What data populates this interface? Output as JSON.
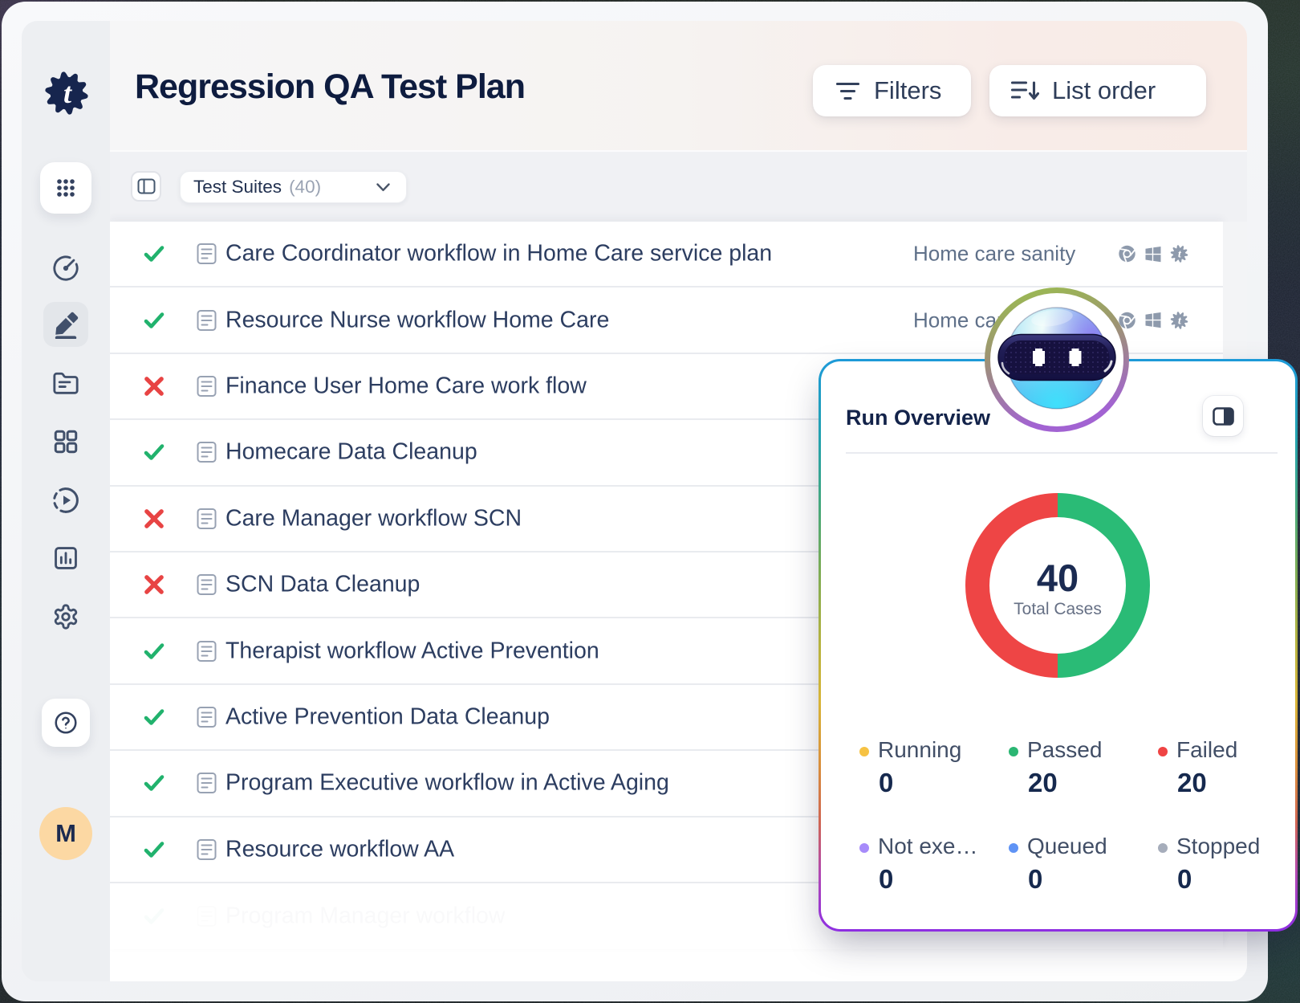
{
  "page_title": "Regression QA Test Plan",
  "header": {
    "filters_label": "Filters",
    "list_order_label": "List order"
  },
  "toolbar": {
    "suites_label": "Test Suites",
    "suites_count": "(40)"
  },
  "sidebar": {
    "logo": "testsigma-cog-logo",
    "items": [
      "apps-grid",
      "dashboard-gauge",
      "edit-pencil",
      "folder",
      "modules-grid",
      "run-play",
      "reports-chart",
      "settings-gear"
    ],
    "active_item": "edit-pencil",
    "help_label": "?",
    "avatar_initial": "M"
  },
  "table": {
    "rows": [
      {
        "status": "pass",
        "name": "Care Coordinator workflow in Home Care service plan",
        "suite": "Home care sanity",
        "env_icons": [
          "chrome",
          "windows",
          "testsigma-gear"
        ]
      },
      {
        "status": "pass",
        "name": "Resource Nurse workflow Home Care",
        "suite": "Home care sanity",
        "env_icons": [
          "chrome",
          "windows",
          "testsigma-gear"
        ]
      },
      {
        "status": "fail",
        "name": "Finance User Home Care work flow",
        "suite": "",
        "env_icons": []
      },
      {
        "status": "pass",
        "name": "Homecare Data Cleanup",
        "suite": "",
        "env_icons": []
      },
      {
        "status": "fail",
        "name": "Care Manager workflow SCN",
        "suite": "",
        "env_icons": []
      },
      {
        "status": "fail",
        "name": "SCN Data Cleanup",
        "suite": "",
        "env_icons": []
      },
      {
        "status": "pass",
        "name": "Therapist workflow Active Prevention",
        "suite": "",
        "env_icons": []
      },
      {
        "status": "pass",
        "name": "Active Prevention Data Cleanup",
        "suite": "",
        "env_icons": []
      },
      {
        "status": "pass",
        "name": "Program Executive workflow in Active Aging",
        "suite": "",
        "env_icons": []
      },
      {
        "status": "pass",
        "name": "Resource workflow AA",
        "suite": "",
        "env_icons": []
      }
    ],
    "ghost_row": {
      "status": "pass",
      "name": "Program Manager workflow"
    }
  },
  "run_overview": {
    "title": "Run Overview",
    "chart_data": {
      "type": "pie",
      "title": "Run Overview",
      "center_value": 40,
      "center_label": "Total Cases",
      "categories": [
        "Running",
        "Passed",
        "Failed",
        "Not exe…",
        "Queued",
        "Stopped"
      ],
      "values": [
        0,
        20,
        20,
        0,
        0,
        0
      ],
      "colors": [
        "#f6c243",
        "#2bb673",
        "#ef4444",
        "#a78bfa",
        "#5f93f5",
        "#a6adbb"
      ],
      "donut_colors": {
        "passed": "#2abb76",
        "failed": "#ee4545"
      }
    },
    "total_value": "40",
    "total_label": "Total Cases",
    "legend": [
      {
        "label": "Running",
        "value": "0",
        "color": "#f6c243"
      },
      {
        "label": "Passed",
        "value": "20",
        "color": "#2bb673"
      },
      {
        "label": "Failed",
        "value": "20",
        "color": "#ef4444"
      },
      {
        "label": "Not exe…",
        "value": "0",
        "color": "#a78bfa"
      },
      {
        "label": "Queued",
        "value": "0",
        "color": "#5f93f5"
      },
      {
        "label": "Stopped",
        "value": "0",
        "color": "#a6adbb"
      }
    ]
  },
  "colors": {
    "accent_blue": "#1d9ad8",
    "accent_purple": "#8d2ee2",
    "pass_green": "#21b26d",
    "fail_red": "#e84444",
    "donut_green": "#2abb76",
    "donut_red": "#ee4545"
  }
}
